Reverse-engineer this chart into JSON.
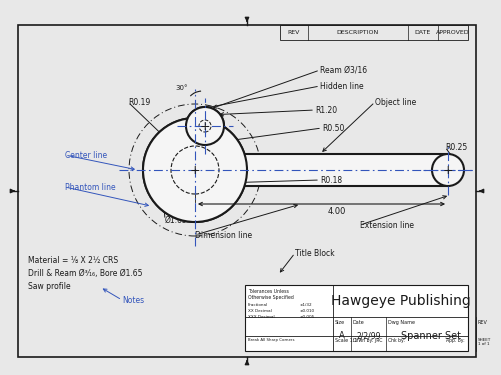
{
  "bg_color": "#e8e8e8",
  "drawing_bg": "#f5f5f5",
  "line_color": "#1a1a1a",
  "blue_color": "#3355bb",
  "dim_color": "#333344",
  "header": {
    "rev": "REV",
    "description": "DESCRIPTION",
    "date": "DATE",
    "approved": "APPROVED"
  },
  "title_block_company": "Hawgeye Publishing",
  "title_block_drawing": "Spanner Set",
  "title_block_date": "2/2/99",
  "title_block_scale": "Scale 1:1",
  "title_block_drawn": "Drwn by: JRC",
  "title_block_size": "A",
  "title_block_sheet": "SHEET\n1 of 1",
  "title_block_tol1": "Tolerances Unless",
  "title_block_tol2": "Otherwise Specified",
  "title_block_frac": "Fractional",
  "title_block_frac_val": "±1/32",
  "title_block_xx": "XX Decimal",
  "title_block_xx_val": "±0.010",
  "title_block_xxx": "XXX Decimal",
  "title_block_xxx_val": "±0.005",
  "title_block_break": "Break All Sharp Corners",
  "title_block_chk": "Chk by:",
  "title_block_app": "App. by:",
  "notes_line1": "Material = ⅛ X 2½ CRS",
  "notes_line2": "Drill & Ream Ø³⁄₁₆, Bore Ø1.65",
  "notes_line3": "Saw profile",
  "labels": {
    "ream": "Ream Ø3/16",
    "hidden_line": "Hidden line",
    "object_line": "Object line",
    "r120": "R1.20",
    "r050": "R0.50",
    "r019": "R0.19",
    "r025": "R0.25",
    "r018": "R0.18",
    "center_line": "Center line",
    "phantom_line": "Phantom line",
    "dia165": "Ø1.65",
    "dim_400": "4.00",
    "dim_line": "Dimension line",
    "ext_line": "Extension line",
    "title_block_lbl": "Title Block",
    "notes_lbl": "Notes",
    "angle_30": "30°"
  }
}
